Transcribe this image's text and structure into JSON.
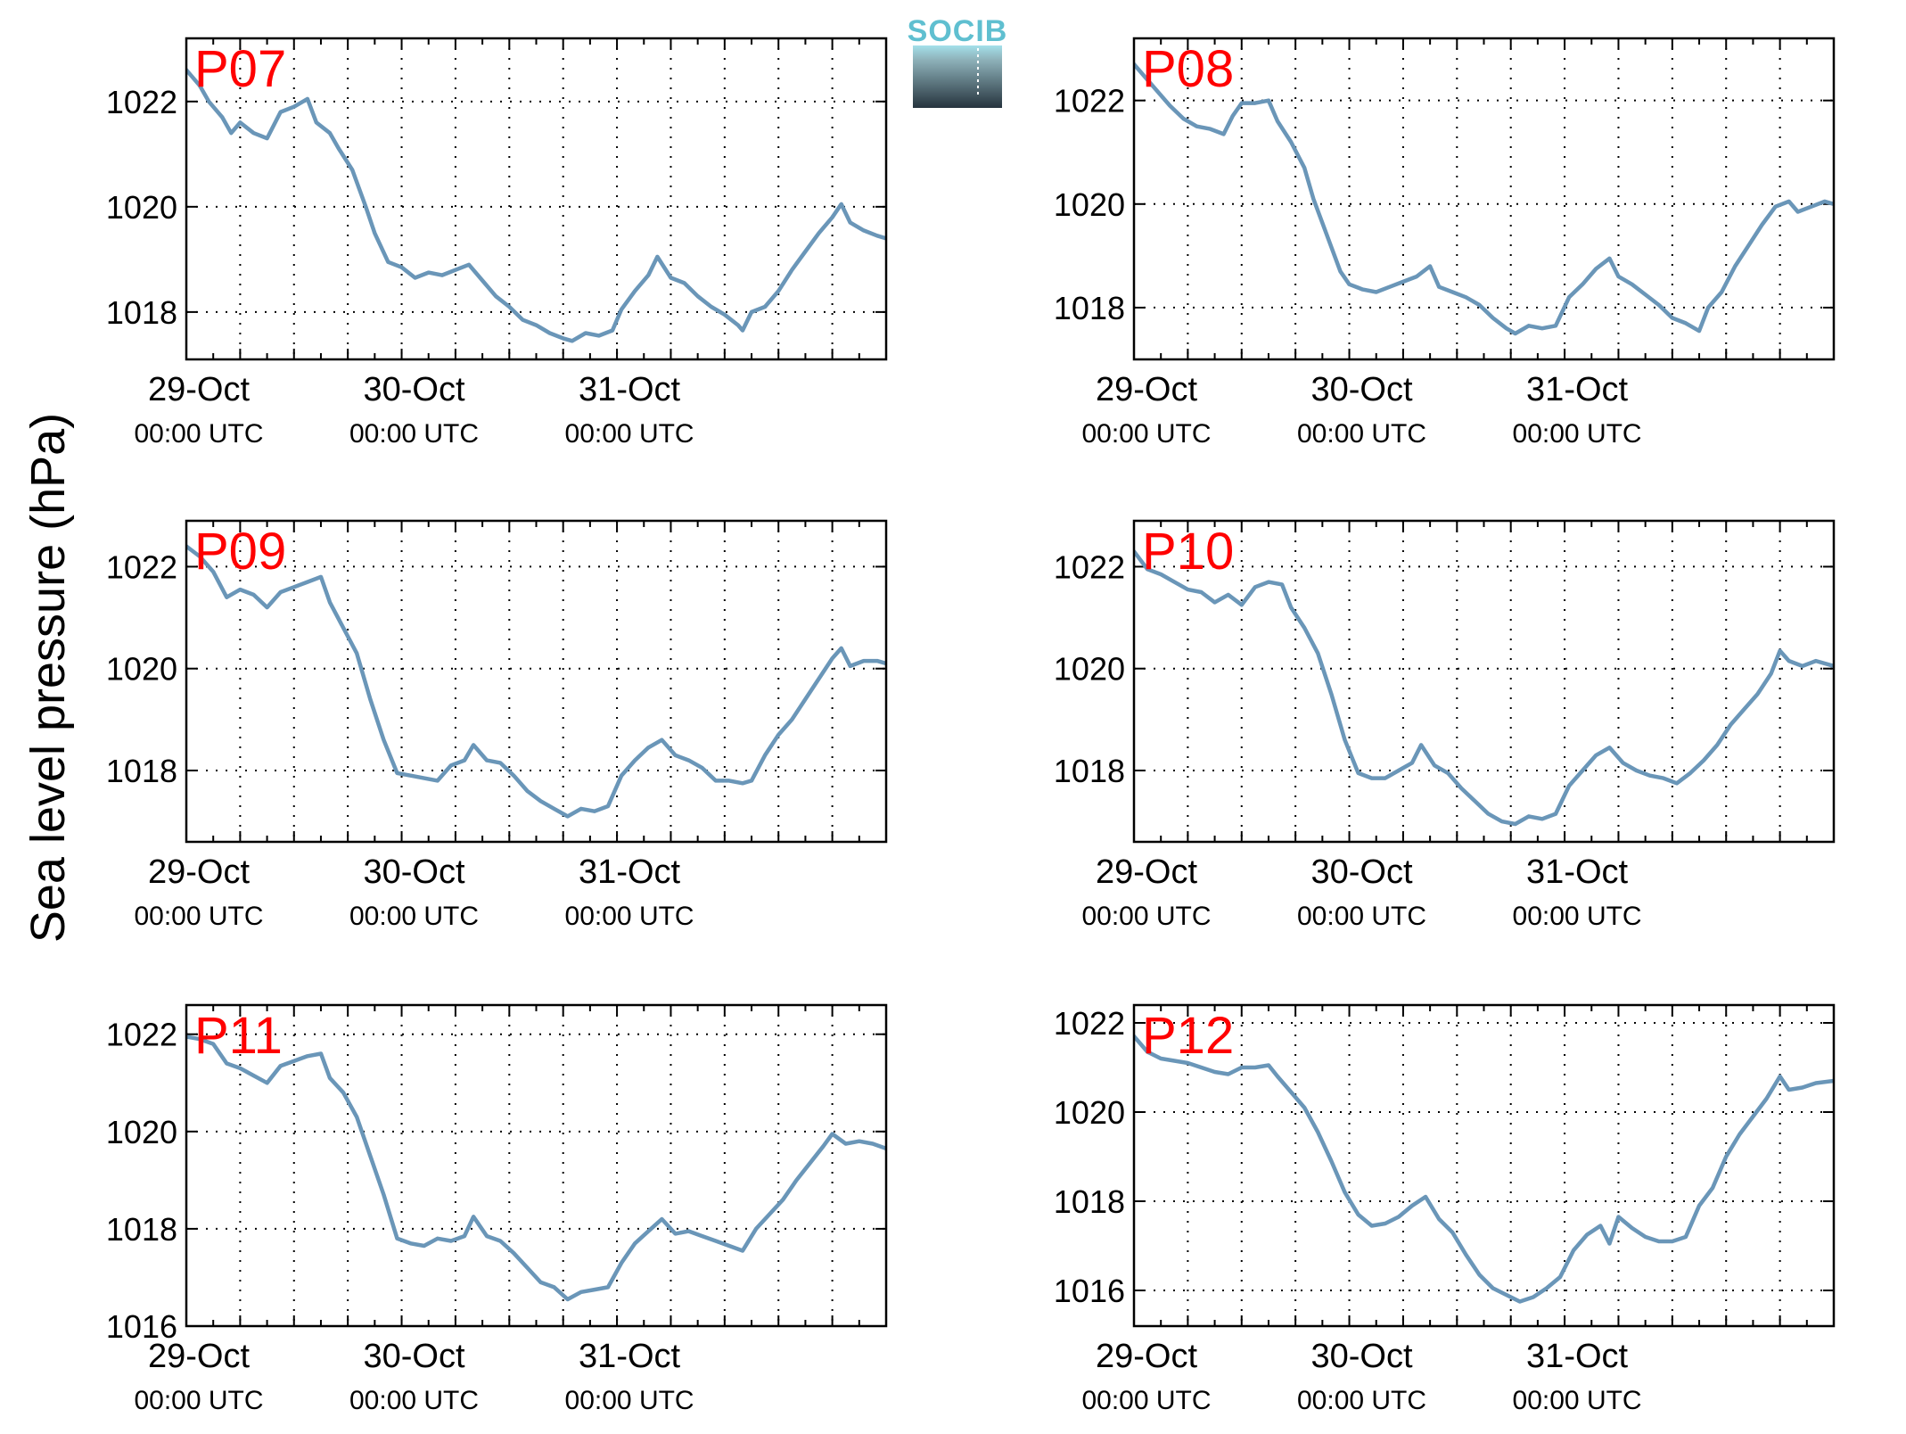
{
  "figure": {
    "ylabel": "Sea level pressure (hPa)",
    "logo_text": "SOCIB",
    "line_color": "#6a96b8",
    "label_color": "#ff0000"
  },
  "chart_data": [
    {
      "type": "line",
      "title": "P07",
      "x_ticks": [
        "29-Oct",
        "30-Oct",
        "31-Oct"
      ],
      "x_tick_sublabel": "00:00 UTC",
      "ylim": [
        1017.1,
        1023.2
      ],
      "y_ticks": [
        1018,
        1020,
        1022
      ],
      "grid": true,
      "points": [
        [
          0,
          1022.6
        ],
        [
          1.5,
          1022.3
        ],
        [
          2.5,
          1022.0
        ],
        [
          4,
          1021.7
        ],
        [
          5,
          1021.4
        ],
        [
          6,
          1021.6
        ],
        [
          7.5,
          1021.4
        ],
        [
          9,
          1021.3
        ],
        [
          10.5,
          1021.8
        ],
        [
          12,
          1021.9
        ],
        [
          13.5,
          1022.05
        ],
        [
          14.5,
          1021.6
        ],
        [
          16,
          1021.4
        ],
        [
          17,
          1021.1
        ],
        [
          18.5,
          1020.7
        ],
        [
          20,
          1020.0
        ],
        [
          21,
          1019.5
        ],
        [
          22.5,
          1018.95
        ],
        [
          24,
          1018.85
        ],
        [
          25.5,
          1018.65
        ],
        [
          27,
          1018.75
        ],
        [
          28.5,
          1018.7
        ],
        [
          30,
          1018.8
        ],
        [
          31.5,
          1018.9
        ],
        [
          33,
          1018.6
        ],
        [
          34.5,
          1018.3
        ],
        [
          36,
          1018.1
        ],
        [
          37.5,
          1017.85
        ],
        [
          39,
          1017.75
        ],
        [
          40.5,
          1017.6
        ],
        [
          42,
          1017.5
        ],
        [
          43,
          1017.45
        ],
        [
          44.5,
          1017.6
        ],
        [
          46,
          1017.55
        ],
        [
          47.5,
          1017.65
        ],
        [
          48.5,
          1018.05
        ],
        [
          50,
          1018.4
        ],
        [
          51.5,
          1018.7
        ],
        [
          52.5,
          1019.05
        ],
        [
          54,
          1018.65
        ],
        [
          55.5,
          1018.55
        ],
        [
          57,
          1018.3
        ],
        [
          58.5,
          1018.1
        ],
        [
          60,
          1017.95
        ],
        [
          61.5,
          1017.75
        ],
        [
          62,
          1017.65
        ],
        [
          63,
          1018.0
        ],
        [
          64.5,
          1018.1
        ],
        [
          66,
          1018.4
        ],
        [
          67.5,
          1018.8
        ],
        [
          69,
          1019.15
        ],
        [
          70.5,
          1019.5
        ],
        [
          72,
          1019.8
        ],
        [
          73,
          1020.05
        ],
        [
          74,
          1019.7
        ],
        [
          75.5,
          1019.55
        ],
        [
          77,
          1019.45
        ],
        [
          78,
          1019.4
        ]
      ]
    },
    {
      "type": "line",
      "title": "P08",
      "x_ticks": [
        "29-Oct",
        "30-Oct",
        "31-Oct"
      ],
      "x_tick_sublabel": "00:00 UTC",
      "ylim": [
        1017.0,
        1023.2
      ],
      "y_ticks": [
        1018,
        1020,
        1022
      ],
      "grid": true,
      "points": [
        [
          0,
          1022.7
        ],
        [
          1.5,
          1022.4
        ],
        [
          2.5,
          1022.2
        ],
        [
          4,
          1021.9
        ],
        [
          5.5,
          1021.65
        ],
        [
          7,
          1021.5
        ],
        [
          8.5,
          1021.45
        ],
        [
          10,
          1021.35
        ],
        [
          11,
          1021.7
        ],
        [
          12,
          1021.95
        ],
        [
          13.5,
          1021.95
        ],
        [
          15,
          1022.0
        ],
        [
          16,
          1021.6
        ],
        [
          17.5,
          1021.2
        ],
        [
          19,
          1020.7
        ],
        [
          20,
          1020.1
        ],
        [
          21.5,
          1019.4
        ],
        [
          23,
          1018.7
        ],
        [
          24,
          1018.45
        ],
        [
          25.5,
          1018.35
        ],
        [
          27,
          1018.3
        ],
        [
          28.5,
          1018.4
        ],
        [
          30,
          1018.5
        ],
        [
          31.5,
          1018.6
        ],
        [
          33,
          1018.8
        ],
        [
          34,
          1018.4
        ],
        [
          35.5,
          1018.3
        ],
        [
          37,
          1018.2
        ],
        [
          38.5,
          1018.05
        ],
        [
          40,
          1017.8
        ],
        [
          41.5,
          1017.6
        ],
        [
          42.5,
          1017.5
        ],
        [
          44,
          1017.65
        ],
        [
          45.5,
          1017.6
        ],
        [
          47,
          1017.65
        ],
        [
          48.5,
          1018.2
        ],
        [
          50,
          1018.45
        ],
        [
          51.5,
          1018.75
        ],
        [
          53,
          1018.95
        ],
        [
          54,
          1018.6
        ],
        [
          55.5,
          1018.45
        ],
        [
          57,
          1018.25
        ],
        [
          58.5,
          1018.05
        ],
        [
          60,
          1017.8
        ],
        [
          61.5,
          1017.7
        ],
        [
          63,
          1017.55
        ],
        [
          64,
          1018.0
        ],
        [
          65.5,
          1018.3
        ],
        [
          67,
          1018.8
        ],
        [
          68.5,
          1019.2
        ],
        [
          70,
          1019.6
        ],
        [
          71.5,
          1019.95
        ],
        [
          73,
          1020.05
        ],
        [
          74,
          1019.85
        ],
        [
          75.5,
          1019.95
        ],
        [
          77,
          1020.05
        ],
        [
          78,
          1020.0
        ]
      ]
    },
    {
      "type": "line",
      "title": "P09",
      "x_ticks": [
        "29-Oct",
        "30-Oct",
        "31-Oct"
      ],
      "x_tick_sublabel": "00:00 UTC",
      "ylim": [
        1016.6,
        1022.9
      ],
      "y_ticks": [
        1018,
        1020,
        1022
      ],
      "grid": true,
      "points": [
        [
          0,
          1022.4
        ],
        [
          1.5,
          1022.2
        ],
        [
          3,
          1021.9
        ],
        [
          4.5,
          1021.4
        ],
        [
          6,
          1021.55
        ],
        [
          7.5,
          1021.45
        ],
        [
          9,
          1021.2
        ],
        [
          10.5,
          1021.5
        ],
        [
          12,
          1021.6
        ],
        [
          13.5,
          1021.7
        ],
        [
          15,
          1021.8
        ],
        [
          16,
          1021.3
        ],
        [
          17.5,
          1020.8
        ],
        [
          19,
          1020.3
        ],
        [
          20.5,
          1019.4
        ],
        [
          22,
          1018.6
        ],
        [
          23.5,
          1017.95
        ],
        [
          25,
          1017.9
        ],
        [
          26.5,
          1017.85
        ],
        [
          28,
          1017.8
        ],
        [
          29.5,
          1018.1
        ],
        [
          31,
          1018.2
        ],
        [
          32,
          1018.5
        ],
        [
          33.5,
          1018.2
        ],
        [
          35,
          1018.15
        ],
        [
          36.5,
          1017.9
        ],
        [
          38,
          1017.6
        ],
        [
          39.5,
          1017.4
        ],
        [
          41,
          1017.25
        ],
        [
          42.5,
          1017.1
        ],
        [
          44,
          1017.25
        ],
        [
          45.5,
          1017.2
        ],
        [
          47,
          1017.3
        ],
        [
          48.5,
          1017.9
        ],
        [
          50,
          1018.2
        ],
        [
          51.5,
          1018.45
        ],
        [
          53,
          1018.6
        ],
        [
          54.5,
          1018.3
        ],
        [
          56,
          1018.2
        ],
        [
          57.5,
          1018.05
        ],
        [
          59,
          1017.8
        ],
        [
          60.5,
          1017.8
        ],
        [
          62,
          1017.75
        ],
        [
          63,
          1017.8
        ],
        [
          64.5,
          1018.3
        ],
        [
          66,
          1018.7
        ],
        [
          67.5,
          1019.0
        ],
        [
          69,
          1019.4
        ],
        [
          70.5,
          1019.8
        ],
        [
          72,
          1020.2
        ],
        [
          73,
          1020.4
        ],
        [
          74,
          1020.05
        ],
        [
          75.5,
          1020.15
        ],
        [
          77,
          1020.15
        ],
        [
          78,
          1020.1
        ]
      ]
    },
    {
      "type": "line",
      "title": "P10",
      "x_ticks": [
        "29-Oct",
        "30-Oct",
        "31-Oct"
      ],
      "x_tick_sublabel": "00:00 UTC",
      "ylim": [
        1016.6,
        1022.9
      ],
      "y_ticks": [
        1018,
        1020,
        1022
      ],
      "grid": true,
      "points": [
        [
          0,
          1022.3
        ],
        [
          1.5,
          1021.95
        ],
        [
          3,
          1021.85
        ],
        [
          4.5,
          1021.7
        ],
        [
          6,
          1021.55
        ],
        [
          7.5,
          1021.5
        ],
        [
          9,
          1021.3
        ],
        [
          10.5,
          1021.45
        ],
        [
          12,
          1021.25
        ],
        [
          13.5,
          1021.6
        ],
        [
          15,
          1021.7
        ],
        [
          16.5,
          1021.65
        ],
        [
          17.5,
          1021.2
        ],
        [
          19,
          1020.8
        ],
        [
          20.5,
          1020.3
        ],
        [
          22,
          1019.5
        ],
        [
          23.5,
          1018.6
        ],
        [
          25,
          1017.95
        ],
        [
          26.5,
          1017.85
        ],
        [
          28,
          1017.85
        ],
        [
          29.5,
          1018.0
        ],
        [
          31,
          1018.15
        ],
        [
          32,
          1018.5
        ],
        [
          33.5,
          1018.1
        ],
        [
          35,
          1017.95
        ],
        [
          36.5,
          1017.65
        ],
        [
          38,
          1017.4
        ],
        [
          39.5,
          1017.15
        ],
        [
          41,
          1017.0
        ],
        [
          42.5,
          1016.95
        ],
        [
          44,
          1017.1
        ],
        [
          45.5,
          1017.05
        ],
        [
          47,
          1017.15
        ],
        [
          48.5,
          1017.7
        ],
        [
          50,
          1018.0
        ],
        [
          51.5,
          1018.3
        ],
        [
          53,
          1018.45
        ],
        [
          54.5,
          1018.15
        ],
        [
          56,
          1018.0
        ],
        [
          57.5,
          1017.9
        ],
        [
          59,
          1017.85
        ],
        [
          60.5,
          1017.75
        ],
        [
          62,
          1017.95
        ],
        [
          63.5,
          1018.2
        ],
        [
          65,
          1018.5
        ],
        [
          66.5,
          1018.9
        ],
        [
          68,
          1019.2
        ],
        [
          69.5,
          1019.5
        ],
        [
          71,
          1019.9
        ],
        [
          72,
          1020.35
        ],
        [
          73,
          1020.15
        ],
        [
          74.5,
          1020.05
        ],
        [
          76,
          1020.15
        ],
        [
          78,
          1020.05
        ]
      ]
    },
    {
      "type": "line",
      "title": "P11",
      "x_ticks": [
        "29-Oct",
        "30-Oct",
        "31-Oct"
      ],
      "x_tick_sublabel": "00:00 UTC",
      "ylim": [
        1016.0,
        1022.6
      ],
      "y_ticks": [
        1016,
        1018,
        1020,
        1022
      ],
      "grid": true,
      "points": [
        [
          0,
          1021.95
        ],
        [
          1.5,
          1021.9
        ],
        [
          3,
          1021.8
        ],
        [
          4.5,
          1021.4
        ],
        [
          6,
          1021.3
        ],
        [
          7.5,
          1021.15
        ],
        [
          9,
          1021.0
        ],
        [
          10.5,
          1021.35
        ],
        [
          12,
          1021.45
        ],
        [
          13.5,
          1021.55
        ],
        [
          15,
          1021.6
        ],
        [
          16,
          1021.1
        ],
        [
          17.5,
          1020.8
        ],
        [
          19,
          1020.3
        ],
        [
          20.5,
          1019.5
        ],
        [
          22,
          1018.7
        ],
        [
          23.5,
          1017.8
        ],
        [
          25,
          1017.7
        ],
        [
          26.5,
          1017.65
        ],
        [
          28,
          1017.8
        ],
        [
          29.5,
          1017.75
        ],
        [
          31,
          1017.85
        ],
        [
          32,
          1018.25
        ],
        [
          33.5,
          1017.85
        ],
        [
          35,
          1017.75
        ],
        [
          36.5,
          1017.5
        ],
        [
          38,
          1017.2
        ],
        [
          39.5,
          1016.9
        ],
        [
          41,
          1016.8
        ],
        [
          42.5,
          1016.55
        ],
        [
          44,
          1016.7
        ],
        [
          45.5,
          1016.75
        ],
        [
          47,
          1016.8
        ],
        [
          48.5,
          1017.3
        ],
        [
          50,
          1017.7
        ],
        [
          51.5,
          1017.95
        ],
        [
          53,
          1018.2
        ],
        [
          54.5,
          1017.9
        ],
        [
          56,
          1017.95
        ],
        [
          57.5,
          1017.85
        ],
        [
          59,
          1017.75
        ],
        [
          60.5,
          1017.65
        ],
        [
          62,
          1017.55
        ],
        [
          63.5,
          1018.0
        ],
        [
          65,
          1018.3
        ],
        [
          66.5,
          1018.6
        ],
        [
          68,
          1019.0
        ],
        [
          69.5,
          1019.35
        ],
        [
          71,
          1019.7
        ],
        [
          72,
          1019.95
        ],
        [
          73.5,
          1019.75
        ],
        [
          75,
          1019.8
        ],
        [
          76.5,
          1019.75
        ],
        [
          78,
          1019.65
        ]
      ]
    },
    {
      "type": "line",
      "title": "P12",
      "x_ticks": [
        "29-Oct",
        "30-Oct",
        "31-Oct"
      ],
      "x_tick_sublabel": "00:00 UTC",
      "ylim": [
        1015.2,
        1022.4
      ],
      "y_ticks": [
        1016,
        1018,
        1020,
        1022
      ],
      "grid": true,
      "points": [
        [
          0,
          1021.7
        ],
        [
          1.5,
          1021.35
        ],
        [
          3,
          1021.2
        ],
        [
          4.5,
          1021.15
        ],
        [
          6,
          1021.1
        ],
        [
          7.5,
          1021.0
        ],
        [
          9,
          1020.9
        ],
        [
          10.5,
          1020.85
        ],
        [
          12,
          1021.0
        ],
        [
          13.5,
          1021.0
        ],
        [
          15,
          1021.05
        ],
        [
          16,
          1020.8
        ],
        [
          17.5,
          1020.45
        ],
        [
          19,
          1020.1
        ],
        [
          20.5,
          1019.55
        ],
        [
          22,
          1018.9
        ],
        [
          23.5,
          1018.2
        ],
        [
          25,
          1017.7
        ],
        [
          26.5,
          1017.45
        ],
        [
          28,
          1017.5
        ],
        [
          29.5,
          1017.65
        ],
        [
          31,
          1017.9
        ],
        [
          32.5,
          1018.1
        ],
        [
          34,
          1017.6
        ],
        [
          35.5,
          1017.3
        ],
        [
          37,
          1016.8
        ],
        [
          38.5,
          1016.35
        ],
        [
          40,
          1016.05
        ],
        [
          41.5,
          1015.9
        ],
        [
          43,
          1015.75
        ],
        [
          44.5,
          1015.85
        ],
        [
          46,
          1016.05
        ],
        [
          47.5,
          1016.3
        ],
        [
          49,
          1016.9
        ],
        [
          50.5,
          1017.25
        ],
        [
          52,
          1017.45
        ],
        [
          53,
          1017.05
        ],
        [
          54,
          1017.65
        ],
        [
          55.5,
          1017.4
        ],
        [
          57,
          1017.2
        ],
        [
          58.5,
          1017.1
        ],
        [
          60,
          1017.1
        ],
        [
          61.5,
          1017.2
        ],
        [
          63,
          1017.9
        ],
        [
          64.5,
          1018.3
        ],
        [
          66,
          1019.0
        ],
        [
          67.5,
          1019.5
        ],
        [
          69,
          1019.9
        ],
        [
          70.5,
          1020.3
        ],
        [
          72,
          1020.8
        ],
        [
          73,
          1020.5
        ],
        [
          74.5,
          1020.55
        ],
        [
          76,
          1020.65
        ],
        [
          78,
          1020.7
        ]
      ]
    }
  ]
}
